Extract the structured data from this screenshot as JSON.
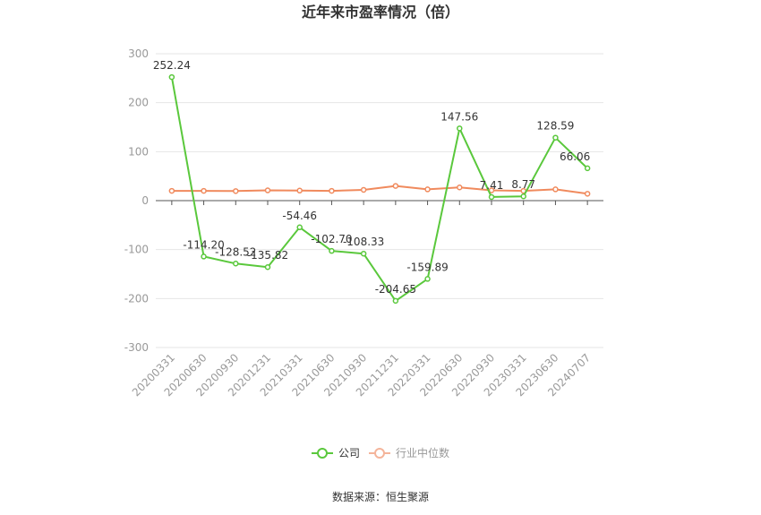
{
  "chart_data": {
    "type": "line",
    "title": "近年来市盈率情况（倍）",
    "categories": [
      "20200331",
      "20200630",
      "20200930",
      "20201231",
      "20210331",
      "20210630",
      "20210930",
      "20211231",
      "20220331",
      "20220630",
      "20220930",
      "20230331",
      "20230630",
      "20240707"
    ],
    "series": [
      {
        "name": "公司",
        "color": "#5ac83c",
        "values": [
          252.24,
          -114.2,
          -128.52,
          -135.82,
          -54.46,
          -102.7,
          -108.33,
          -204.65,
          -159.89,
          147.56,
          7.41,
          8.77,
          128.59,
          66.06
        ],
        "labels": [
          "252.24",
          "-114.20",
          "-128.52",
          "-135.82",
          "-54.46",
          "-102.70",
          "-108.33",
          "-204.65",
          "-159.89",
          "147.56",
          "7.41",
          "8.77",
          "128.59",
          "66.06"
        ]
      },
      {
        "name": "行业中位数",
        "color": "#f08a5d",
        "values": [
          20,
          20,
          19.5,
          21,
          20.5,
          20,
          22,
          30,
          23,
          27,
          21,
          20,
          23,
          14
        ]
      }
    ],
    "ylim": [
      -300,
      300
    ],
    "yticks": [
      -300,
      -200,
      -100,
      0,
      100,
      200,
      300
    ],
    "grid": true,
    "legend": "bottom-center"
  },
  "source_text": "数据来源：恒生聚源"
}
